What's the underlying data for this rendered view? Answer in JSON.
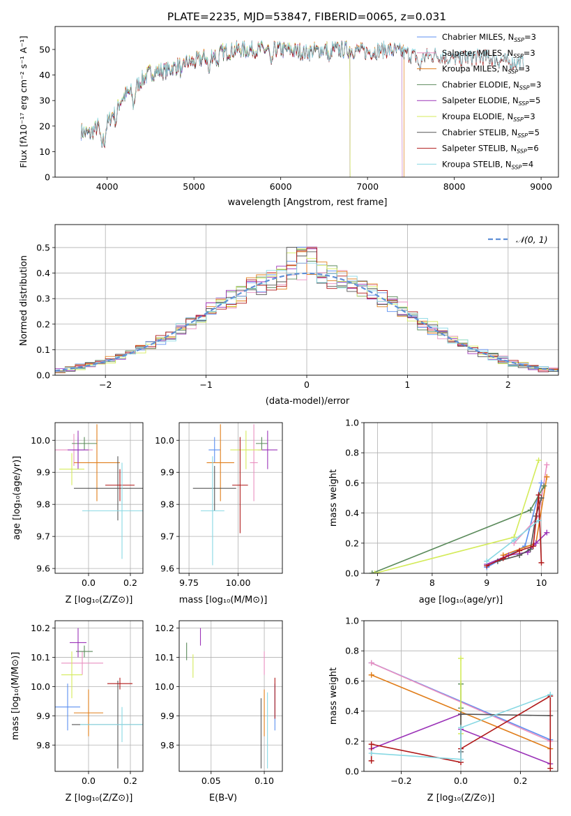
{
  "figure_title": "PLATE=2235, MJD=53847, FIBERID=0065, z=0.031",
  "series_colors": {
    "Chabrier MILES": "#5b8ff0",
    "Salpeter MILES": "#e98fc0",
    "Kroupa MILES": "#e07d19",
    "Chabrier ELODIE": "#5a8a5a",
    "Salpeter ELODIE": "#9b33b8",
    "Kroupa ELODIE": "#d4eb5a",
    "Chabrier STELIB": "#555555",
    "Salpeter STELIB": "#b01818",
    "Kroupa STELIB": "#87d8e3"
  },
  "chart_data": [
    {
      "id": "spectrum",
      "type": "line",
      "xlabel": "wavelength [Angstrom, rest frame]",
      "ylabel": "Flux [fλ10⁻¹⁷ erg cm⁻² s⁻¹ A⁻¹]",
      "xlim": [
        3400,
        9200
      ],
      "ylim": [
        0,
        59
      ],
      "xticks": [
        4000,
        5000,
        6000,
        7000,
        8000,
        9000
      ],
      "yticks": [
        0,
        10,
        20,
        30,
        40,
        50
      ],
      "legend_position": "right",
      "legend": [
        {
          "label": "Chabrier MILES, N",
          "sub": "SSP",
          "suffix": "=3"
        },
        {
          "label": "Salpeter MILES, N",
          "sub": "SSP",
          "suffix": "=3"
        },
        {
          "label": "Kroupa MILES, N",
          "sub": "SSP",
          "suffix": "=3"
        },
        {
          "label": "Chabrier ELODIE, N",
          "sub": "SSP",
          "suffix": "=3"
        },
        {
          "label": "Salpeter ELODIE, N",
          "sub": "SSP",
          "suffix": "=5"
        },
        {
          "label": "Kroupa ELODIE, N",
          "sub": "SSP",
          "suffix": "=3"
        },
        {
          "label": "Chabrier STELIB, N",
          "sub": "SSP",
          "suffix": "=5"
        },
        {
          "label": "Salpeter STELIB, N",
          "sub": "SSP",
          "suffix": "=6"
        },
        {
          "label": "Kroupa STELIB, N",
          "sub": "SSP",
          "suffix": "=4"
        }
      ],
      "continuum": [
        [
          3700,
          18
        ],
        [
          3800,
          17
        ],
        [
          3900,
          20
        ],
        [
          4000,
          21
        ],
        [
          4100,
          27
        ],
        [
          4200,
          32
        ],
        [
          4300,
          34
        ],
        [
          4400,
          38
        ],
        [
          4500,
          41
        ],
        [
          4700,
          42
        ],
        [
          4900,
          45
        ],
        [
          5000,
          45
        ],
        [
          5200,
          48
        ],
        [
          5500,
          50
        ],
        [
          5800,
          50
        ],
        [
          6000,
          50
        ],
        [
          6300,
          49
        ],
        [
          6500,
          50
        ],
        [
          6800,
          50
        ],
        [
          7000,
          49
        ],
        [
          7200,
          50
        ],
        [
          7400,
          49
        ],
        [
          7600,
          47
        ],
        [
          7800,
          48
        ],
        [
          8000,
          46
        ],
        [
          8200,
          47
        ],
        [
          8400,
          47
        ],
        [
          8600,
          45
        ],
        [
          8800,
          45
        ]
      ],
      "absorption_features": [
        [
          3933,
          8
        ],
        [
          3968,
          7
        ],
        [
          4102,
          5
        ],
        [
          4305,
          6
        ],
        [
          4861,
          5
        ],
        [
          5175,
          7
        ],
        [
          5270,
          4
        ],
        [
          5892,
          8
        ],
        [
          6563,
          5
        ],
        [
          7600,
          5
        ]
      ],
      "series_end": {
        "Chabrier MILES": 7400,
        "Salpeter MILES": 7400,
        "Kroupa MILES": 7420,
        "Chabrier ELODIE": 6800,
        "Salpeter ELODIE": 6800,
        "Kroupa ELODIE": 6800,
        "Chabrier STELIB": 9000,
        "Salpeter STELIB": 9000,
        "Kroupa STELIB": 9000
      }
    },
    {
      "id": "residual_hist",
      "type": "bar",
      "xlabel": "(data-model)/error",
      "ylabel": "Normed distribution",
      "xlim": [
        -2.5,
        2.5
      ],
      "ylim": [
        0,
        0.59
      ],
      "xticks": [
        -2,
        -1,
        0,
        1,
        2
      ],
      "yticks": [
        0.0,
        0.1,
        0.2,
        0.3,
        0.4,
        0.5
      ],
      "bin_width": 0.1,
      "reference_label": "𝒩(0, 1)",
      "legend_position": "top-right"
    },
    {
      "id": "age_vs_Z",
      "type": "scatter",
      "xlabel": "Z [log₁₀(Z/Z⊙)]",
      "ylabel": "age  [log₁₀(age/yr)]",
      "xlim": [
        -0.16,
        0.26
      ],
      "ylim": [
        9.585,
        10.055
      ],
      "xticks": [
        0.0,
        0.2
      ],
      "yticks": [
        9.6,
        9.7,
        9.8,
        9.9,
        10.0
      ],
      "points": [
        {
          "series": "Chabrier MILES",
          "x": -0.05,
          "xerr": 0.03,
          "y": 9.97,
          "yerr": 0.04
        },
        {
          "series": "Salpeter MILES",
          "x": -0.07,
          "xerr": 0.09,
          "y": 9.97,
          "yerr": 0.05
        },
        {
          "series": "Kroupa MILES",
          "x": 0.04,
          "xerr": 0.11,
          "y": 9.93,
          "yerr": 0.12
        },
        {
          "series": "Chabrier ELODIE",
          "x": -0.02,
          "xerr": 0.06,
          "y": 9.99,
          "yerr": 0.02
        },
        {
          "series": "Salpeter ELODIE",
          "x": -0.05,
          "xerr": 0.05,
          "y": 9.97,
          "yerr": 0.06
        },
        {
          "series": "Kroupa ELODIE",
          "x": -0.08,
          "xerr": 0.06,
          "y": 9.91,
          "yerr": 0.05
        },
        {
          "series": "Chabrier STELIB",
          "x": 0.14,
          "xerr": 0.21,
          "y": 9.85,
          "yerr": 0.1
        },
        {
          "series": "Salpeter STELIB",
          "x": 0.15,
          "xerr": 0.07,
          "y": 9.86,
          "yerr": 0.05
        },
        {
          "series": "Kroupa STELIB",
          "x": 0.16,
          "xerr": 0.19,
          "y": 9.78,
          "yerr": 0.15
        }
      ]
    },
    {
      "id": "age_vs_mass",
      "type": "scatter",
      "xlabel": "mass [log₁₀(M/M⊙)]",
      "ylabel": "",
      "xlim": [
        9.7,
        10.225
      ],
      "ylim": [
        9.585,
        10.055
      ],
      "xticks": [
        9.75,
        10.0
      ],
      "yticks": [
        9.6,
        9.7,
        9.8,
        9.9,
        10.0
      ],
      "points": [
        {
          "series": "Chabrier MILES",
          "x": 9.88,
          "xerr": 0.03,
          "y": 9.97,
          "yerr": 0.04
        },
        {
          "series": "Salpeter MILES",
          "x": 10.08,
          "xerr": 0.02,
          "y": 9.93,
          "yerr": 0.12
        },
        {
          "series": "Kroupa MILES",
          "x": 9.91,
          "xerr": 0.07,
          "y": 9.93,
          "yerr": 0.12
        },
        {
          "series": "Chabrier ELODIE",
          "x": 10.12,
          "xerr": 0.03,
          "y": 9.99,
          "yerr": 0.02
        },
        {
          "series": "Salpeter ELODIE",
          "x": 10.15,
          "xerr": 0.05,
          "y": 9.97,
          "yerr": 0.06
        },
        {
          "series": "Kroupa ELODIE",
          "x": 10.04,
          "xerr": 0.08,
          "y": 9.97,
          "yerr": 0.06
        },
        {
          "series": "Chabrier STELIB",
          "x": 9.88,
          "xerr": 0.11,
          "y": 9.85,
          "yerr": 0.07
        },
        {
          "series": "Salpeter STELIB",
          "x": 10.01,
          "xerr": 0.04,
          "y": 9.86,
          "yerr": 0.15
        },
        {
          "series": "Kroupa STELIB",
          "x": 9.87,
          "xerr": 0.06,
          "y": 9.78,
          "yerr": 0.17
        }
      ]
    },
    {
      "id": "weight_vs_age",
      "type": "line",
      "xlabel": "age  [log₁₀(age/yr)]",
      "ylabel": "mass weight",
      "xlim": [
        6.75,
        10.3
      ],
      "ylim": [
        0,
        1.0
      ],
      "xticks": [
        7,
        8,
        9,
        10
      ],
      "yticks": [
        0.0,
        0.2,
        0.4,
        0.6,
        0.8,
        1.0
      ],
      "series": [
        {
          "name": "Chabrier MILES",
          "x": [
            9.0,
            9.7,
            10.0
          ],
          "y": [
            0.04,
            0.18,
            0.6
          ]
        },
        {
          "name": "Salpeter MILES",
          "x": [
            9.5,
            9.95,
            10.1
          ],
          "y": [
            0.2,
            0.38,
            0.72
          ]
        },
        {
          "name": "Kroupa MILES",
          "x": [
            9.3,
            9.9,
            10.1
          ],
          "y": [
            0.12,
            0.2,
            0.64
          ]
        },
        {
          "name": "Chabrier ELODIE",
          "x": [
            6.9,
            9.8,
            10.05
          ],
          "y": [
            0.0,
            0.42,
            0.58
          ]
        },
        {
          "name": "Salpeter ELODIE",
          "x": [
            9.0,
            9.4,
            9.75,
            9.9,
            10.1
          ],
          "y": [
            0.06,
            0.12,
            0.14,
            0.2,
            0.27
          ]
        },
        {
          "name": "Kroupa ELODIE",
          "x": [
            6.95,
            9.5,
            9.95
          ],
          "y": [
            0.0,
            0.24,
            0.75
          ]
        },
        {
          "name": "Chabrier STELIB",
          "x": [
            9.2,
            9.6,
            9.8,
            9.9,
            10.0
          ],
          "y": [
            0.08,
            0.12,
            0.16,
            0.38,
            0.5
          ]
        },
        {
          "name": "Salpeter STELIB",
          "x": [
            9.0,
            9.3,
            9.6,
            9.85,
            9.95,
            10.0
          ],
          "y": [
            0.05,
            0.1,
            0.15,
            0.18,
            0.52,
            0.07
          ]
        },
        {
          "name": "Kroupa STELIB",
          "x": [
            9.0,
            9.5,
            9.95
          ],
          "y": [
            0.08,
            0.22,
            0.35
          ]
        }
      ]
    },
    {
      "id": "mass_vs_Z",
      "type": "scatter",
      "xlabel": "Z [log₁₀(Z/Z⊙)]",
      "ylabel": "mass [log₁₀(M/M⊙)]",
      "xlim": [
        -0.16,
        0.26
      ],
      "ylim": [
        9.71,
        10.225
      ],
      "xticks": [
        0.0,
        0.2
      ],
      "yticks": [
        9.8,
        9.9,
        10.0,
        10.1,
        10.2
      ],
      "points": [
        {
          "series": "Chabrier MILES",
          "x": -0.1,
          "xerr": 0.06,
          "y": 9.93,
          "yerr": 0.08
        },
        {
          "series": "Salpeter MILES",
          "x": -0.03,
          "xerr": 0.1,
          "y": 10.08,
          "yerr": 0.04
        },
        {
          "series": "Kroupa MILES",
          "x": 0.0,
          "xerr": 0.07,
          "y": 9.91,
          "yerr": 0.08
        },
        {
          "series": "Chabrier ELODIE",
          "x": -0.02,
          "xerr": 0.04,
          "y": 10.12,
          "yerr": 0.02
        },
        {
          "series": "Salpeter ELODIE",
          "x": -0.05,
          "xerr": 0.04,
          "y": 10.15,
          "yerr": 0.05
        },
        {
          "series": "Kroupa ELODIE",
          "x": -0.08,
          "xerr": 0.05,
          "y": 10.04,
          "yerr": 0.08
        },
        {
          "series": "Chabrier STELIB",
          "x": 0.14,
          "xerr": 0.22,
          "y": 9.87,
          "yerr": 0.15
        },
        {
          "series": "Salpeter STELIB",
          "x": 0.15,
          "xerr": 0.06,
          "y": 10.01,
          "yerr": 0.02
        },
        {
          "series": "Kroupa STELIB",
          "x": 0.16,
          "xerr": 0.2,
          "y": 9.87,
          "yerr": 0.06
        }
      ]
    },
    {
      "id": "mass_vs_EBV",
      "type": "scatter",
      "xlabel": "E(B-V)",
      "ylabel": "",
      "xlim": [
        0.02,
        0.117
      ],
      "ylim": [
        9.71,
        10.225
      ],
      "xticks": [
        0.05,
        0.1
      ],
      "yticks": [
        9.8,
        9.9,
        10.0,
        10.1,
        10.2
      ],
      "points": [
        {
          "series": "Chabrier MILES",
          "x": 0.11,
          "y": 9.93,
          "yerr": 0.08
        },
        {
          "series": "Salpeter MILES",
          "x": 0.1,
          "y": 10.08,
          "yerr": 0.04
        },
        {
          "series": "Kroupa MILES",
          "x": 0.1,
          "y": 9.91,
          "yerr": 0.08
        },
        {
          "series": "Chabrier ELODIE",
          "x": 0.027,
          "y": 10.12,
          "yerr": 0.03
        },
        {
          "series": "Salpeter ELODIE",
          "x": 0.04,
          "y": 10.17,
          "yerr": 0.03
        },
        {
          "series": "Kroupa ELODIE",
          "x": 0.033,
          "y": 10.07,
          "yerr": 0.04
        },
        {
          "series": "Chabrier STELIB",
          "x": 0.097,
          "y": 9.84,
          "yerr": 0.12
        },
        {
          "series": "Salpeter STELIB",
          "x": 0.11,
          "y": 9.96,
          "yerr": 0.07
        },
        {
          "series": "Kroupa STELIB",
          "x": 0.103,
          "y": 9.85,
          "yerr": 0.13
        }
      ]
    },
    {
      "id": "weight_vs_Z",
      "type": "line",
      "xlabel": "Z [log₁₀(Z/Z⊙)]",
      "ylabel": "mass weight",
      "xlim": [
        -0.325,
        0.325
      ],
      "ylim": [
        0,
        1.0
      ],
      "xticks": [
        -0.2,
        0.0,
        0.2
      ],
      "yticks": [
        0.0,
        0.2,
        0.4,
        0.6,
        0.8,
        1.0
      ],
      "series": [
        {
          "name": "Chabrier MILES",
          "x": [
            -0.3,
            0.3
          ],
          "y": [
            0.72,
            0.21
          ]
        },
        {
          "name": "Salpeter MILES",
          "x": [
            -0.3,
            0.3
          ],
          "y": [
            0.72,
            0.2
          ]
        },
        {
          "name": "Kroupa MILES",
          "x": [
            -0.3,
            0.3
          ],
          "y": [
            0.64,
            0.15
          ]
        },
        {
          "name": "Chabrier ELODIE",
          "x": [
            0.0,
            0.0
          ],
          "y": [
            0.42,
            0.58
          ]
        },
        {
          "name": "Salpeter ELODIE",
          "x": [
            -0.3,
            0.0,
            0.0,
            0.3
          ],
          "y": [
            0.15,
            0.38,
            0.28,
            0.05
          ]
        },
        {
          "name": "Kroupa ELODIE",
          "x": [
            0.0,
            0.0
          ],
          "y": [
            0.25,
            0.75
          ]
        },
        {
          "name": "Chabrier STELIB",
          "x": [
            0.0,
            0.0,
            0.3
          ],
          "y": [
            0.13,
            0.38,
            0.37
          ]
        },
        {
          "name": "Salpeter STELIB",
          "x": [
            -0.3,
            -0.3,
            0.0,
            0.0,
            0.3,
            0.3
          ],
          "y": [
            0.07,
            0.18,
            0.06,
            0.15,
            0.5,
            0.02
          ]
        },
        {
          "name": "Kroupa STELIB",
          "x": [
            -0.3,
            0.0,
            0.0,
            0.3
          ],
          "y": [
            0.12,
            0.08,
            0.29,
            0.51
          ]
        }
      ]
    }
  ]
}
